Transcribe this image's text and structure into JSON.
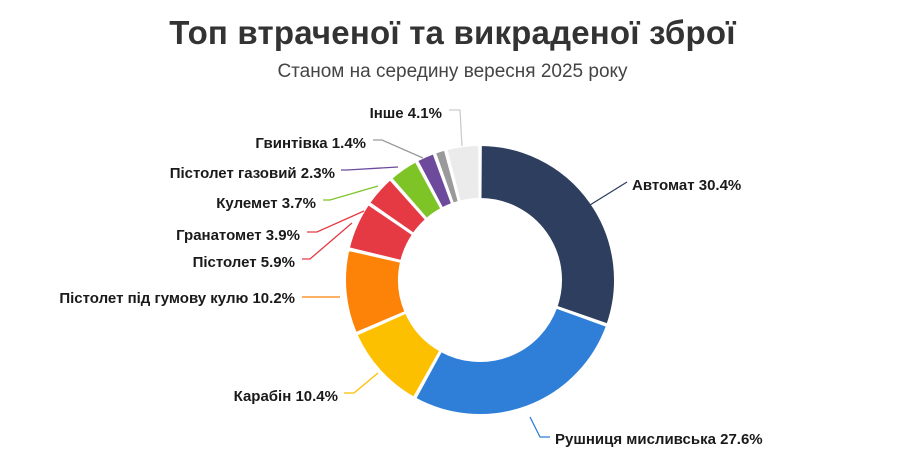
{
  "chart_data": {
    "type": "pie",
    "variant": "donut",
    "title": "Топ втраченої та викраденої зброї",
    "subtitle": "Станом на середину вересня 2025 року",
    "slices": [
      {
        "label": "Автомат",
        "value": 30.4,
        "text": "Автомат 30.4%",
        "color": "#2e3e5e"
      },
      {
        "label": "Рушниця мисливська",
        "value": 27.6,
        "text": "Рушниця мисливська 27.6%",
        "color": "#2f7fd8"
      },
      {
        "label": "Карабін",
        "value": 10.4,
        "text": "Карабін 10.4%",
        "color": "#fcc000"
      },
      {
        "label": "Пістолет під гумову кулю",
        "value": 10.2,
        "text": "Пістолет під гумову кулю 10.2%",
        "color": "#fd8208"
      },
      {
        "label": "Пістолет",
        "value": 5.9,
        "text": "Пістолет 5.9%",
        "color": "#e53a44"
      },
      {
        "label": "Гранатомет",
        "value": 3.9,
        "text": "Гранатомет 3.9%",
        "color": "#e53a44"
      },
      {
        "label": "Кулемет",
        "value": 3.7,
        "text": "Кулемет 3.7%",
        "color": "#7fc427"
      },
      {
        "label": "Пістолет газовий",
        "value": 2.3,
        "text": "Пістолет газовий 2.3%",
        "color": "#6d4a9c"
      },
      {
        "label": "Гвинтівка",
        "value": 1.4,
        "text": "Гвинтівка 1.4%",
        "color": "#9a9a9a"
      },
      {
        "label": "Інше",
        "value": 4.1,
        "text": "Інше 4.1%",
        "color": "#ebebeb"
      }
    ]
  }
}
